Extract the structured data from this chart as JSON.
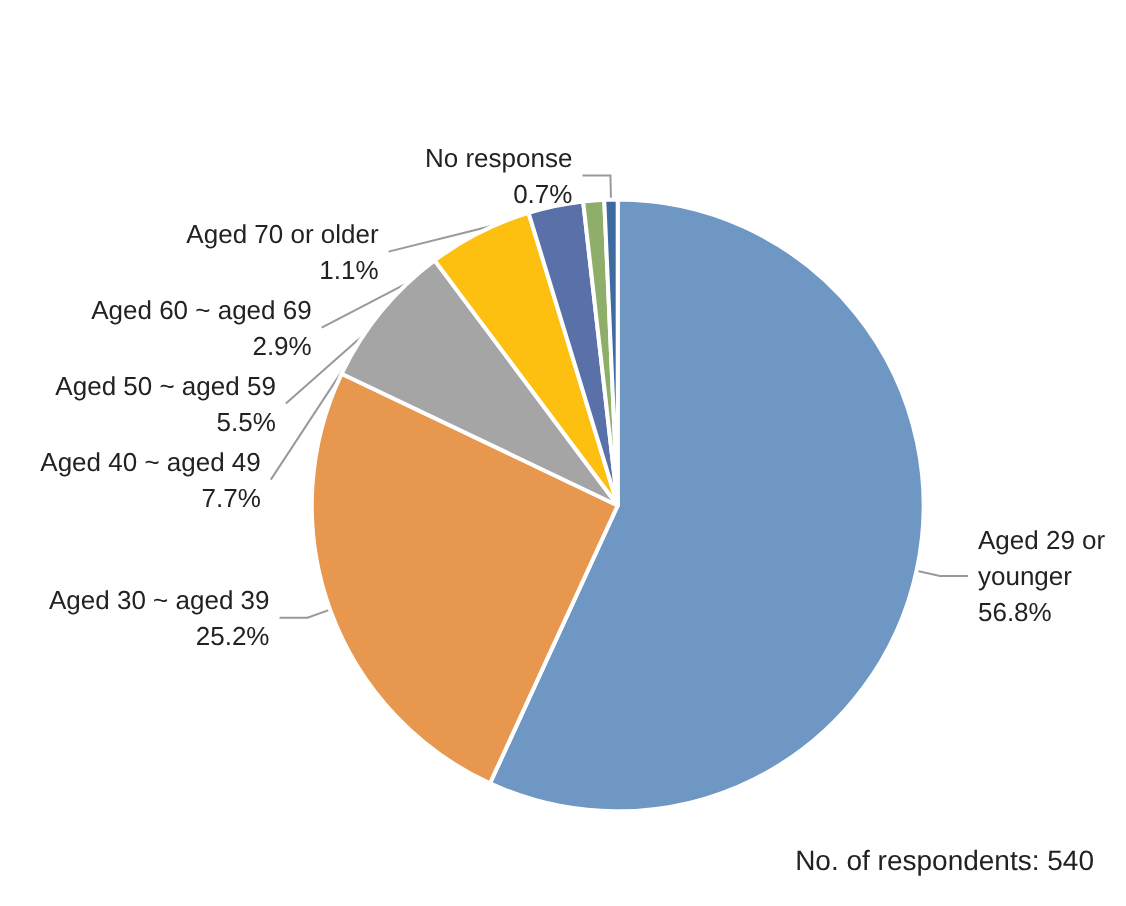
{
  "chart_data": {
    "type": "pie",
    "categories": [
      "Aged 29 or younger",
      "Aged 30 ~ aged 39",
      "Aged 40 ~ aged 49",
      "Aged 50 ~ aged 59",
      "Aged 60 ~ aged 69",
      "Aged 70 or older",
      "No response"
    ],
    "values": [
      56.8,
      25.2,
      7.7,
      5.5,
      2.9,
      1.1,
      0.7
    ],
    "colors": [
      "#6f97c3",
      "#e8974e",
      "#a5a5a5",
      "#fdc010",
      "#5a70a8",
      "#8fae6a",
      "#3e6aa0"
    ],
    "value_labels": [
      "56.8%",
      "25.2%",
      "7.7%",
      "5.5%",
      "2.9%",
      "1.1%",
      "0.7%"
    ],
    "annotations": [
      "No. of respondents: 540"
    ]
  }
}
